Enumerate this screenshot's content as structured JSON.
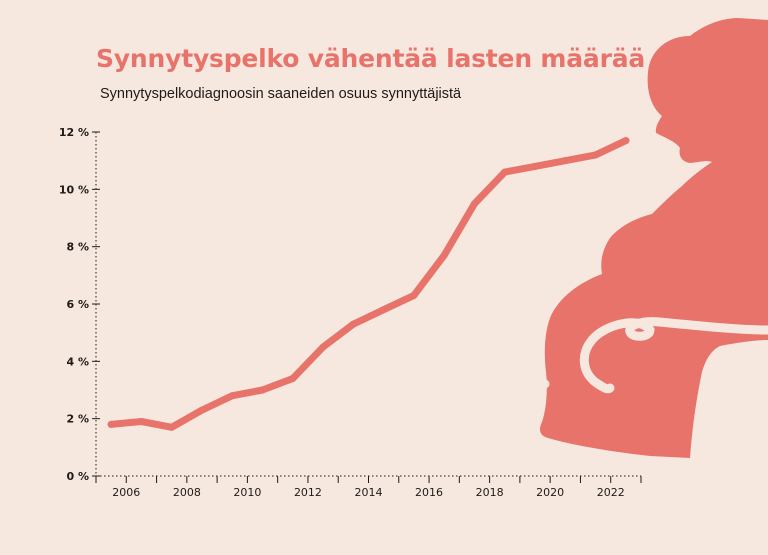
{
  "title": "Synnytyspelko vähentää lasten määrää",
  "subtitle": "Synnytyspelkodiagnoosin saaneiden osuus synnyttäjistä",
  "colors": {
    "background": "#f7e8df",
    "accent": "#e8736b",
    "text": "#1f1a17"
  },
  "illustration": "pregnant-woman-silhouette",
  "chart_data": {
    "type": "line",
    "title": "Synnytyspelko vähentää lasten määrää",
    "subtitle": "Synnytyspelkodiagnoosin saaneiden osuus synnyttäjistä",
    "xlabel": "",
    "ylabel": "",
    "x_ticks": [
      2006,
      2008,
      2010,
      2012,
      2014,
      2016,
      2018,
      2020,
      2022
    ],
    "y_ticks": [
      0,
      2,
      4,
      6,
      8,
      10,
      12
    ],
    "y_tick_labels": [
      "0 %",
      "2 %",
      "4 %",
      "6 %",
      "8 %",
      "10 %",
      "12 %"
    ],
    "xlim": [
      2005,
      2023
    ],
    "ylim": [
      0,
      12
    ],
    "grid": false,
    "series": [
      {
        "x": [
          2005.5,
          2006.5,
          2007.5,
          2008.5,
          2009.5,
          2010.5,
          2011.5,
          2012.5,
          2013.5,
          2014.5,
          2015.5,
          2016.5,
          2017.5,
          2018.5,
          2019.5,
          2020.5,
          2021.5,
          2022.5
        ],
        "values": [
          1.8,
          1.9,
          1.7,
          2.3,
          2.8,
          3.0,
          3.4,
          4.5,
          5.3,
          5.8,
          6.3,
          7.7,
          9.5,
          10.6,
          10.8,
          11.0,
          11.2,
          11.7
        ]
      }
    ]
  }
}
